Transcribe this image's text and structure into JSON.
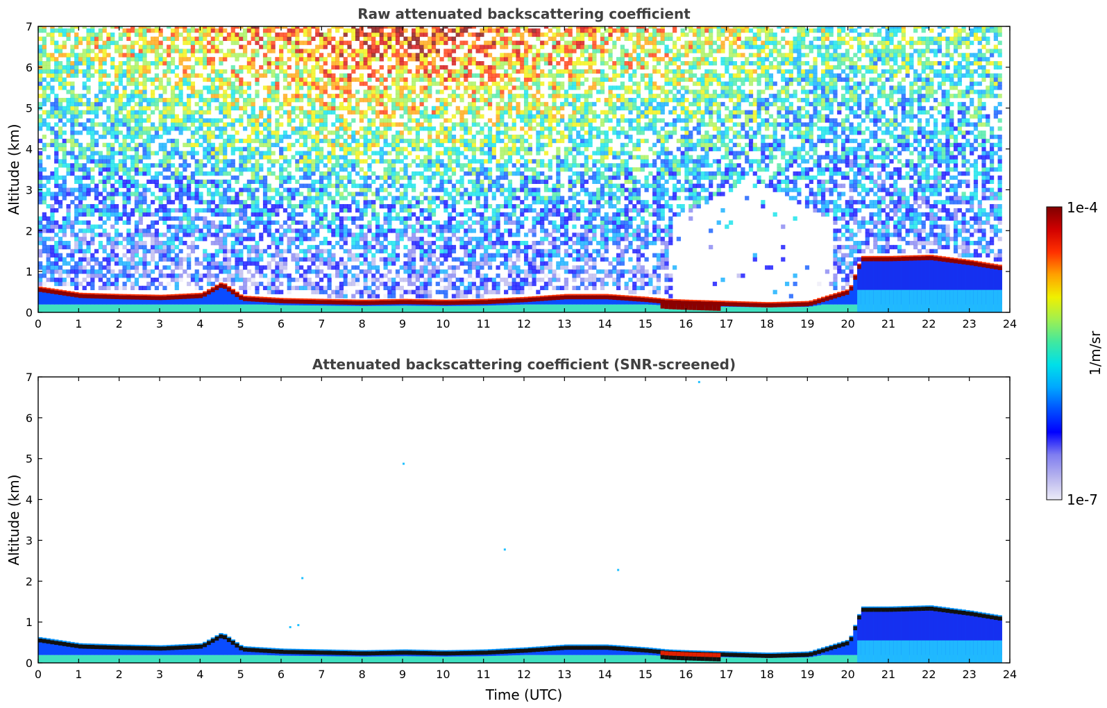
{
  "chart_data": [
    {
      "type": "heatmap",
      "title": "Raw attenuated backscattering coefficient",
      "xlabel": "",
      "ylabel": "Altitude (km)",
      "xlim": [
        0,
        24
      ],
      "ylim": [
        0,
        7
      ],
      "x_ticks": [
        "0",
        "1",
        "2",
        "3",
        "4",
        "5",
        "6",
        "7",
        "8",
        "9",
        "10",
        "11",
        "12",
        "13",
        "14",
        "15",
        "16",
        "17",
        "18",
        "19",
        "20",
        "21",
        "22",
        "23",
        "24"
      ],
      "y_ticks": [
        "0",
        "1",
        "2",
        "3",
        "4",
        "5",
        "6",
        "7"
      ],
      "time_utc": [
        0,
        1,
        2,
        3,
        4,
        4.5,
        5,
        6,
        7,
        8,
        9,
        10,
        11,
        12,
        13,
        14,
        15,
        15.5,
        16,
        17,
        18,
        19,
        20,
        20.3,
        21,
        22,
        23,
        23.8
      ],
      "layer_top_km": [
        0.6,
        0.45,
        0.42,
        0.4,
        0.45,
        0.72,
        0.38,
        0.32,
        0.3,
        0.28,
        0.3,
        0.28,
        0.3,
        0.35,
        0.42,
        0.42,
        0.35,
        0.3,
        0.28,
        0.25,
        0.22,
        0.25,
        0.55,
        1.35,
        1.35,
        1.38,
        1.25,
        1.12
      ],
      "notes_visible": "noise field above layer"
    },
    {
      "type": "heatmap",
      "title": "Attenuated backscattering coefficient (SNR-screened)",
      "xlabel": "Time (UTC)",
      "ylabel": "Altitude (km)",
      "xlim": [
        0,
        24
      ],
      "ylim": [
        0,
        7
      ],
      "x_ticks": [
        "0",
        "1",
        "2",
        "3",
        "4",
        "5",
        "6",
        "7",
        "8",
        "9",
        "10",
        "11",
        "12",
        "13",
        "14",
        "15",
        "16",
        "17",
        "18",
        "19",
        "20",
        "21",
        "22",
        "23",
        "24"
      ],
      "y_ticks": [
        "0",
        "1",
        "2",
        "3",
        "4",
        "5",
        "6",
        "7"
      ],
      "time_utc": [
        0,
        1,
        2,
        3,
        4,
        4.5,
        5,
        6,
        7,
        8,
        9,
        10,
        11,
        12,
        13,
        14,
        15,
        15.5,
        16,
        17,
        18,
        19,
        20,
        20.3,
        21,
        22,
        23,
        23.8
      ],
      "layer_top_km": [
        0.6,
        0.45,
        0.42,
        0.4,
        0.45,
        0.72,
        0.38,
        0.32,
        0.3,
        0.28,
        0.3,
        0.28,
        0.3,
        0.35,
        0.42,
        0.42,
        0.35,
        0.3,
        0.28,
        0.25,
        0.22,
        0.25,
        0.55,
        1.35,
        1.35,
        1.38,
        1.25,
        1.12
      ]
    }
  ],
  "colorbar": {
    "label": "1/m/sr",
    "max_label": "1e-4",
    "min_label": "1e-7",
    "scale": "log",
    "colormap": [
      "#ecebf7",
      "#b7b4ee",
      "#7f7df0",
      "#0000ff",
      "#0050ff",
      "#00a8ff",
      "#00e0e8",
      "#40e8a0",
      "#a0f050",
      "#f0f000",
      "#ffa000",
      "#ff3000",
      "#d00000",
      "#800000"
    ]
  },
  "colors": {
    "layer_peak": "#8b0000",
    "layer_core_screened": "#111111",
    "surface_blue": "#0a4cff",
    "title_gray": "#404040"
  }
}
